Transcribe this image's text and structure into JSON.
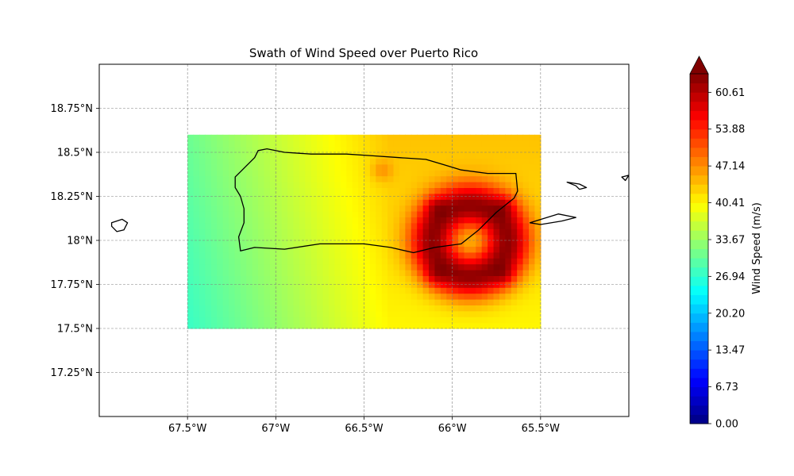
{
  "chart_data": {
    "type": "heatmap",
    "title": "Swath of Wind Speed over Puerto Rico",
    "xlabel": "",
    "ylabel": "",
    "xlim": [
      -68.0,
      -65.0
    ],
    "ylim": [
      17.0,
      19.0
    ],
    "x_ticks": [
      {
        "value": -67.5,
        "label": "67.5°W"
      },
      {
        "value": -67.0,
        "label": "67°W"
      },
      {
        "value": -66.5,
        "label": "66.5°W"
      },
      {
        "value": -66.0,
        "label": "66°W"
      },
      {
        "value": -65.5,
        "label": "65.5°W"
      }
    ],
    "y_ticks": [
      {
        "value": 17.25,
        "label": "17.25°N"
      },
      {
        "value": 17.5,
        "label": "17.5°N"
      },
      {
        "value": 17.75,
        "label": "17.75°N"
      },
      {
        "value": 18.0,
        "label": "18°N"
      },
      {
        "value": 18.25,
        "label": "18.25°N"
      },
      {
        "value": 18.5,
        "label": "18.5°N"
      },
      {
        "value": 18.75,
        "label": "18.75°N"
      }
    ],
    "grid": true,
    "data_extent": {
      "lon": [
        -67.5,
        -65.5
      ],
      "lat": [
        17.5,
        18.6
      ]
    },
    "field": {
      "description_values_in_m_per_s": true,
      "eye_center": {
        "lon": -65.9,
        "lat": 18.0
      },
      "eye_speed": 45,
      "ring_peak_speed": 63,
      "background_west_speed": 29,
      "background_east_speed": 42,
      "hot_spots": [
        {
          "lon": -66.1,
          "lat": 18.2
        },
        {
          "lon": -65.7,
          "lat": 18.2
        },
        {
          "lon": -66.1,
          "lat": 17.8
        },
        {
          "lon": -65.7,
          "lat": 17.8
        },
        {
          "lon": -66.4,
          "lat": 18.4
        }
      ]
    },
    "coastlines": {
      "puerto_rico": [
        [
          -67.23,
          18.36
        ],
        [
          -67.2,
          18.39
        ],
        [
          -67.17,
          18.42
        ],
        [
          -67.12,
          18.47
        ],
        [
          -67.1,
          18.51
        ],
        [
          -67.05,
          18.52
        ],
        [
          -66.95,
          18.5
        ],
        [
          -66.8,
          18.49
        ],
        [
          -66.6,
          18.49
        ],
        [
          -66.45,
          18.48
        ],
        [
          -66.3,
          18.47
        ],
        [
          -66.15,
          18.46
        ],
        [
          -66.05,
          18.43
        ],
        [
          -65.95,
          18.4
        ],
        [
          -65.8,
          18.38
        ],
        [
          -65.64,
          18.38
        ],
        [
          -65.63,
          18.28
        ],
        [
          -65.65,
          18.24
        ],
        [
          -65.75,
          18.16
        ],
        [
          -65.85,
          18.06
        ],
        [
          -65.95,
          17.98
        ],
        [
          -66.1,
          17.96
        ],
        [
          -66.22,
          17.93
        ],
        [
          -66.35,
          17.96
        ],
        [
          -66.5,
          17.98
        ],
        [
          -66.75,
          17.98
        ],
        [
          -66.95,
          17.95
        ],
        [
          -67.12,
          17.96
        ],
        [
          -67.2,
          17.94
        ],
        [
          -67.21,
          18.02
        ],
        [
          -67.18,
          18.1
        ],
        [
          -67.18,
          18.18
        ],
        [
          -67.2,
          18.25
        ],
        [
          -67.23,
          18.3
        ],
        [
          -67.23,
          18.36
        ]
      ],
      "mona_island": [
        [
          -67.93,
          18.1
        ],
        [
          -67.87,
          18.12
        ],
        [
          -67.84,
          18.1
        ],
        [
          -67.86,
          18.06
        ],
        [
          -67.9,
          18.05
        ],
        [
          -67.93,
          18.08
        ],
        [
          -67.93,
          18.1
        ]
      ],
      "culebra": [
        [
          -65.35,
          18.33
        ],
        [
          -65.28,
          18.32
        ],
        [
          -65.24,
          18.3
        ],
        [
          -65.28,
          18.29
        ],
        [
          -65.3,
          18.31
        ],
        [
          -65.35,
          18.33
        ]
      ],
      "vieques": [
        [
          -65.56,
          18.1
        ],
        [
          -65.4,
          18.15
        ],
        [
          -65.3,
          18.13
        ],
        [
          -65.38,
          18.11
        ],
        [
          -65.5,
          18.09
        ],
        [
          -65.56,
          18.1
        ]
      ],
      "st_thomas": [
        [
          -65.04,
          18.36
        ],
        [
          -65.0,
          18.37
        ],
        [
          -65.02,
          18.34
        ],
        [
          -65.04,
          18.36
        ]
      ]
    }
  },
  "colorbar": {
    "label": "Wind Speed (m/s)",
    "min": 0.0,
    "max": 64.0,
    "extend": "max",
    "ticks": [
      {
        "value": 0.0,
        "label": "0.00"
      },
      {
        "value": 6.73,
        "label": "6.73"
      },
      {
        "value": 13.47,
        "label": "13.47"
      },
      {
        "value": 20.2,
        "label": "20.20"
      },
      {
        "value": 26.94,
        "label": "26.94"
      },
      {
        "value": 33.67,
        "label": "33.67"
      },
      {
        "value": 40.41,
        "label": "40.41"
      },
      {
        "value": 47.14,
        "label": "47.14"
      },
      {
        "value": 53.88,
        "label": "53.88"
      },
      {
        "value": 60.61,
        "label": "60.61"
      }
    ],
    "colormap": "jet"
  }
}
